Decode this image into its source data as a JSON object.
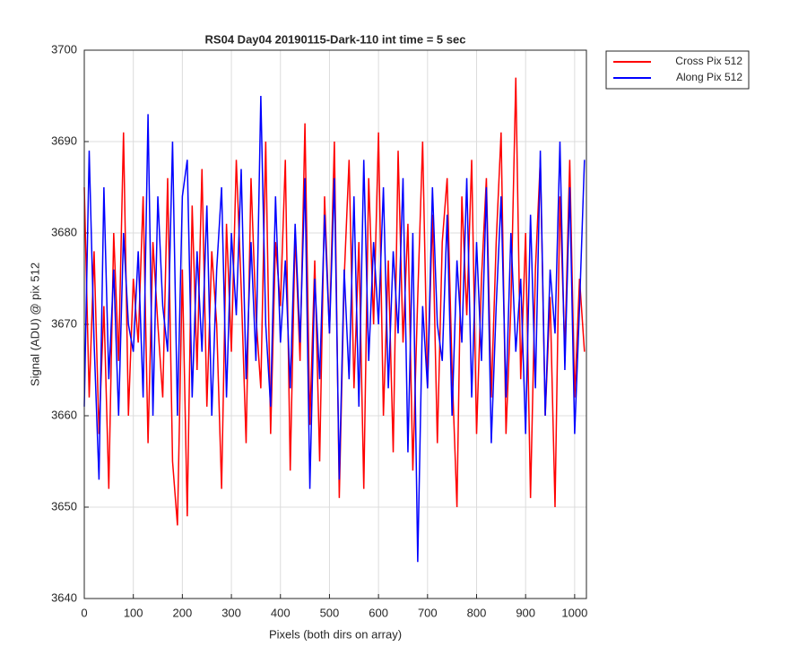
{
  "chart_data": {
    "type": "line",
    "title": "RS04 Day04 20190115-Dark-110 int time = 5 sec",
    "xlabel": "Pixels (both dirs on array)",
    "ylabel": "Signal (ADU) @ pix 512",
    "x": [
      0,
      10,
      20,
      30,
      40,
      50,
      60,
      70,
      80,
      90,
      100,
      110,
      120,
      130,
      140,
      150,
      160,
      170,
      180,
      190,
      200,
      210,
      220,
      230,
      240,
      250,
      260,
      270,
      280,
      290,
      300,
      310,
      320,
      330,
      340,
      350,
      360,
      370,
      380,
      390,
      400,
      410,
      420,
      430,
      440,
      450,
      460,
      470,
      480,
      490,
      500,
      510,
      520,
      530,
      540,
      550,
      560,
      570,
      580,
      590,
      600,
      610,
      620,
      630,
      640,
      650,
      660,
      670,
      680,
      690,
      700,
      710,
      720,
      730,
      740,
      750,
      760,
      770,
      780,
      790,
      800,
      810,
      820,
      830,
      840,
      850,
      860,
      870,
      880,
      890,
      900,
      910,
      920,
      930,
      940,
      950,
      960,
      970,
      980,
      990,
      1000,
      1010,
      1020
    ],
    "series": [
      {
        "name": "Cross Pix 512",
        "color": "#ff0000",
        "values": [
          3685,
          3662,
          3678,
          3658,
          3672,
          3652,
          3680,
          3666,
          3691,
          3660,
          3675,
          3668,
          3684,
          3657,
          3679,
          3670,
          3662,
          3686,
          3655,
          3648,
          3676,
          3649,
          3683,
          3665,
          3687,
          3661,
          3678,
          3670,
          3652,
          3681,
          3667,
          3688,
          3674,
          3657,
          3686,
          3671,
          3663,
          3690,
          3658,
          3679,
          3672,
          3688,
          3654,
          3680,
          3666,
          3692,
          3659,
          3677,
          3655,
          3684,
          3669,
          3690,
          3651,
          3675,
          3688,
          3663,
          3679,
          3652,
          3686,
          3670,
          3691,
          3660,
          3677,
          3656,
          3689,
          3668,
          3681,
          3654,
          3673,
          3690,
          3663,
          3682,
          3657,
          3679,
          3686,
          3665,
          3650,
          3684,
          3671,
          3688,
          3658,
          3675,
          3686,
          3662,
          3679,
          3691,
          3658,
          3672,
          3697,
          3664,
          3680,
          3651,
          3676,
          3688,
          3660,
          3673,
          3650,
          3684,
          3667,
          3688,
          3662,
          3675,
          3667
        ]
      },
      {
        "name": "Along Pix 512",
        "color": "#0000ff",
        "values": [
          3661,
          3689,
          3668,
          3653,
          3685,
          3664,
          3676,
          3660,
          3680,
          3670,
          3667,
          3678,
          3662,
          3693,
          3660,
          3684,
          3672,
          3667,
          3690,
          3660,
          3684,
          3688,
          3662,
          3678,
          3667,
          3683,
          3660,
          3676,
          3685,
          3662,
          3680,
          3671,
          3687,
          3664,
          3679,
          3666,
          3695,
          3670,
          3661,
          3684,
          3668,
          3677,
          3663,
          3681,
          3668,
          3686,
          3652,
          3675,
          3664,
          3682,
          3669,
          3686,
          3653,
          3676,
          3664,
          3684,
          3661,
          3688,
          3666,
          3679,
          3670,
          3685,
          3663,
          3678,
          3669,
          3686,
          3656,
          3680,
          3644,
          3672,
          3663,
          3685,
          3670,
          3666,
          3682,
          3660,
          3677,
          3668,
          3686,
          3662,
          3679,
          3666,
          3685,
          3657,
          3672,
          3684,
          3662,
          3680,
          3667,
          3675,
          3658,
          3682,
          3663,
          3689,
          3660,
          3676,
          3669,
          3690,
          3665,
          3685,
          3658,
          3672,
          3688
        ]
      }
    ],
    "xlim": [
      0,
      1024
    ],
    "ylim": [
      3640,
      3700
    ],
    "xticks": [
      0,
      100,
      200,
      300,
      400,
      500,
      600,
      700,
      800,
      900,
      1000
    ],
    "yticks": [
      3640,
      3650,
      3660,
      3670,
      3680,
      3690,
      3700
    ],
    "grid": true,
    "legend": "outside-upper-right"
  }
}
